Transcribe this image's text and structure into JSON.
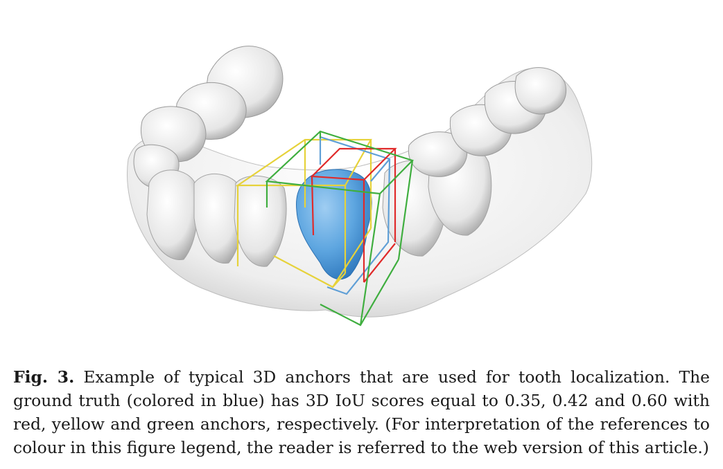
{
  "figure": {
    "colors": {
      "red_anchor": "#e02a2a",
      "yellow_anchor": "#e6d23a",
      "green_anchor": "#3fae3f",
      "ground_truth": "#4d9ad8"
    }
  },
  "caption": {
    "label": "Fig. 3.",
    "text": "Example of typical 3D anchors that are used for tooth localization. The ground truth (colored in blue) has 3D IoU scores equal to 0.35, 0.42 and 0.60 with red, yellow and green anchors, respectively. (For interpretation of the references to colour in this figure legend, the reader is referred to the web version of this article.)"
  }
}
